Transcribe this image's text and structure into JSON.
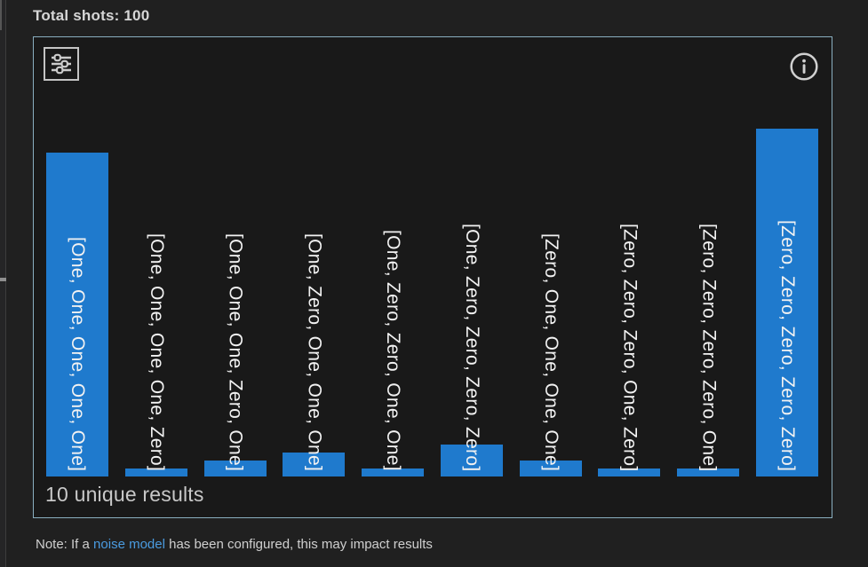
{
  "header": {
    "total_shots": "Total shots: 100"
  },
  "panel": {
    "settings_icon": "sliders-icon",
    "info_icon": "info-icon",
    "unique_results": "10 unique results"
  },
  "note": {
    "prefix": "Note: If a ",
    "link_text": "noise model",
    "suffix": " has been configured, this may impact results"
  },
  "colors": {
    "background": "#202020",
    "panel_background": "#191919",
    "panel_border": "#8aafc0",
    "bar": "#1f7acd",
    "bar_label_text": "#f2f2f2",
    "icon": "#cccccc",
    "link": "#4a9be0",
    "footer_text": "#c8c8c8"
  },
  "chart_data": {
    "type": "bar",
    "orientation": "vertical",
    "title": "",
    "xlabel": "",
    "ylabel": "",
    "grid": false,
    "legend": "none",
    "ylim": [
      0,
      44
    ],
    "total_shots": 100,
    "unique_results_count": 10,
    "bar_label_style": "category label rotated 90deg, bottom-anchored at baseline, overlapping bar",
    "categories": [
      "[One, One, One, One, One]",
      "[One, One, One, One, Zero]",
      "[One, One, One, Zero, One]",
      "[One, Zero, One, One, One]",
      "[One, Zero, Zero, One, One]",
      "[One, Zero, Zero, Zero, Zero]",
      "[Zero, One, One, One, One]",
      "[Zero, Zero, Zero, One, Zero]",
      "[Zero, Zero, Zero, Zero, One]",
      "[Zero, Zero, Zero, Zero, Zero]"
    ],
    "values": [
      41,
      1,
      2,
      3,
      1,
      4,
      2,
      1,
      1,
      44
    ]
  }
}
